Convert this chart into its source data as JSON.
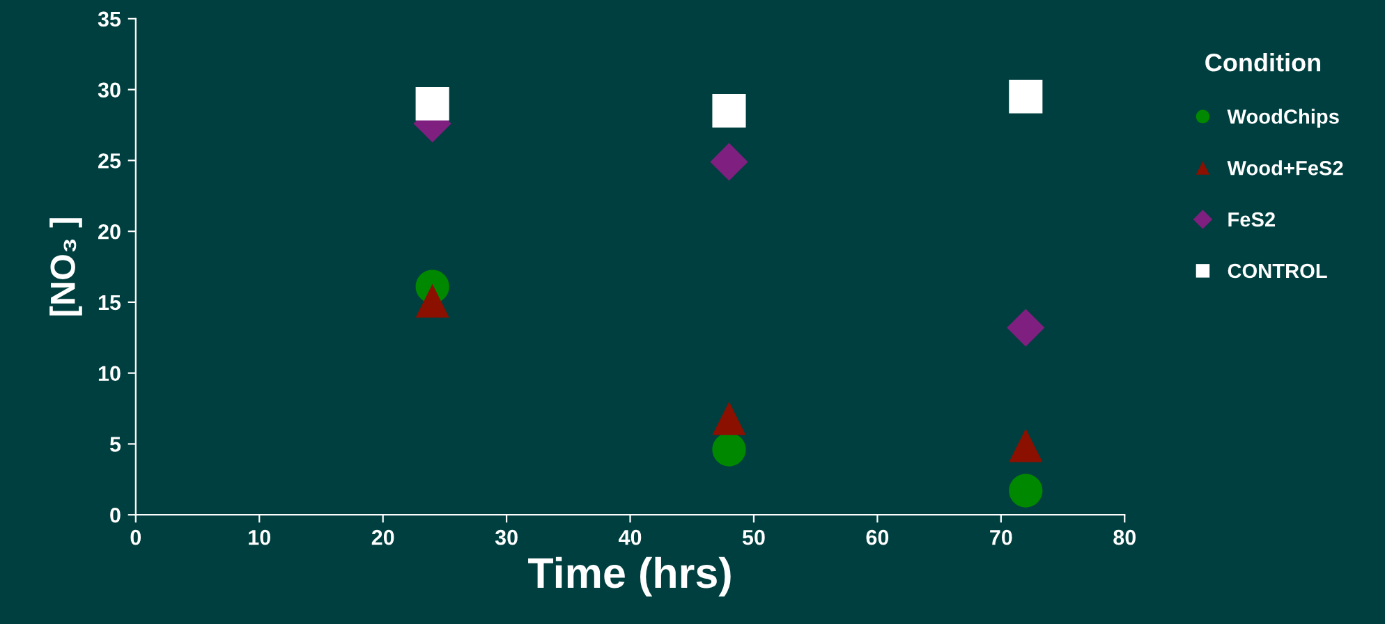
{
  "chart_data": {
    "type": "scatter",
    "xlabel": "Time (hrs)",
    "ylabel": "[NO₃ ]",
    "legend_title": "Condition",
    "legend": "right",
    "xlim": [
      0,
      80
    ],
    "xticks": [
      0,
      10,
      20,
      30,
      40,
      50,
      60,
      70,
      80
    ],
    "ylim": [
      0,
      35
    ],
    "yticks": [
      0,
      5,
      10,
      15,
      20,
      25,
      30,
      35
    ],
    "grid": false,
    "x": [
      24,
      48,
      72
    ],
    "series": [
      {
        "name": "WoodChips",
        "color": "#008800",
        "marker": "circle",
        "values": [
          16.1,
          4.6,
          1.7
        ]
      },
      {
        "name": "Wood+FeS2",
        "color": "#8b1000",
        "marker": "triangle",
        "values": [
          15.1,
          6.8,
          4.9
        ]
      },
      {
        "name": "FeS2",
        "color": "#7f1f7f",
        "marker": "diamond",
        "values": [
          27.6,
          24.9,
          13.2
        ]
      },
      {
        "name": "CONTROL",
        "color": "#ffffff",
        "marker": "square",
        "values": [
          29.0,
          28.5,
          29.5
        ]
      }
    ]
  }
}
